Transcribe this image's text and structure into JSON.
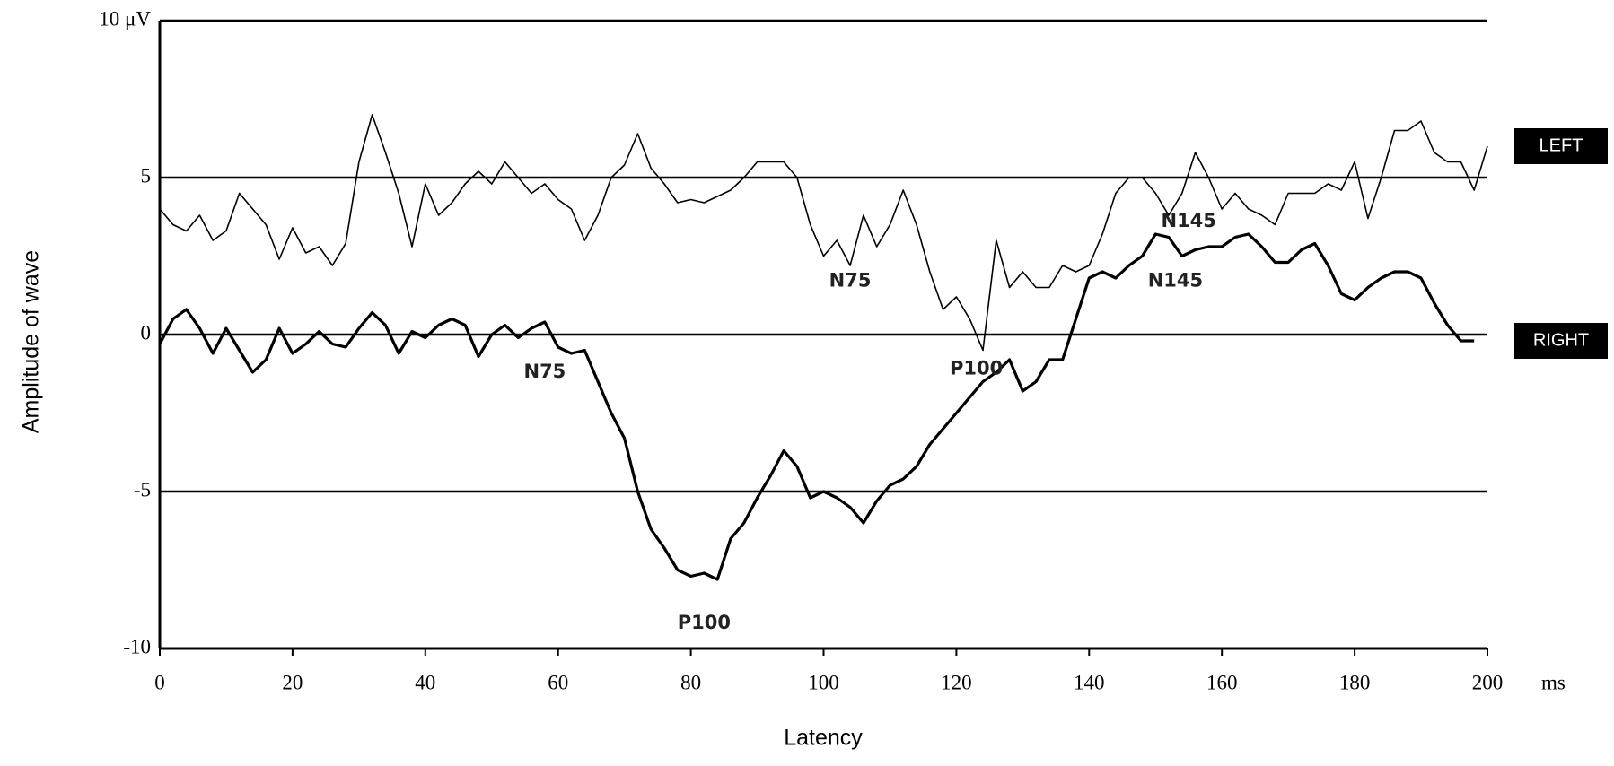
{
  "chart_data": {
    "type": "line",
    "xlabel": "Latency",
    "ylabel": "Amplitude of wave",
    "x_unit": "ms",
    "x": [
      0,
      2,
      4,
      6,
      8,
      10,
      12,
      14,
      16,
      18,
      20,
      22,
      24,
      26,
      28,
      30,
      32,
      34,
      36,
      38,
      40,
      42,
      44,
      46,
      48,
      50,
      52,
      54,
      56,
      58,
      60,
      62,
      64,
      66,
      68,
      70,
      72,
      74,
      76,
      78,
      80,
      82,
      84,
      86,
      88,
      90,
      92,
      94,
      96,
      98,
      100,
      102,
      104,
      106,
      108,
      110,
      112,
      114,
      116,
      118,
      120,
      122,
      124,
      126,
      128,
      130,
      132,
      134,
      136,
      138,
      140,
      142,
      144,
      146,
      148,
      150,
      152,
      154,
      156,
      158,
      160,
      162,
      164,
      166,
      168,
      170,
      172,
      174,
      176,
      178,
      180,
      182,
      184,
      186,
      188,
      190,
      192,
      194,
      196,
      198,
      200
    ],
    "series": [
      {
        "name": "LEFT",
        "color": "#000000",
        "width": 1.6,
        "values": [
          4,
          3.5,
          3.3,
          3.8,
          3,
          3.3,
          4.5,
          4,
          3.5,
          2.4,
          3.4,
          2.6,
          2.8,
          2.2,
          2.9,
          5.5,
          7,
          5.8,
          4.5,
          2.8,
          4.8,
          3.8,
          4.2,
          4.8,
          5.2,
          4.8,
          5.5,
          5,
          4.5,
          4.8,
          4.3,
          4,
          3,
          3.8,
          5,
          5.4,
          6.4,
          5.3,
          4.8,
          4.2,
          4.3,
          4.2,
          4.4,
          4.6,
          5,
          5.5,
          5.5,
          5.5,
          5,
          3.5,
          2.5,
          3,
          2.2,
          3.8,
          2.8,
          3.5,
          4.6,
          3.5,
          2,
          0.8,
          1.2,
          0.5,
          -0.5,
          3,
          1.5,
          2,
          1.5,
          1.5,
          2.2,
          2,
          2.2,
          3.2,
          4.5,
          5,
          5,
          4.5,
          3.8,
          4.5,
          5.8,
          5,
          4,
          4.5,
          4,
          3.8,
          3.5,
          4.5,
          4.5,
          4.5,
          4.8,
          4.6,
          5.5,
          3.7,
          5,
          6.5,
          6.5,
          6.8,
          5.8,
          5.5,
          5.5,
          4.6,
          6
        ]
      },
      {
        "name": "RIGHT",
        "color": "#000000",
        "width": 3.2,
        "values": [
          -0.3,
          0.5,
          0.8,
          0.2,
          -0.6,
          0.2,
          -0.5,
          -1.2,
          -0.8,
          0.2,
          -0.6,
          -0.3,
          0.1,
          -0.3,
          -0.4,
          0.2,
          0.7,
          0.3,
          -0.6,
          0.1,
          -0.1,
          0.3,
          0.5,
          0.3,
          -0.7,
          0,
          0.3,
          -0.1,
          0.2,
          0.4,
          -0.4,
          -0.6,
          -0.5,
          -1.5,
          -2.5,
          -3.3,
          -5,
          -6.2,
          -6.8,
          -7.5,
          -7.7,
          -7.6,
          -7.8,
          -6.5,
          -6,
          -5.2,
          -4.5,
          -3.7,
          -4.2,
          -5.2,
          -5,
          -5.2,
          -5.5,
          -6,
          -5.3,
          -4.8,
          -4.6,
          -4.2,
          -3.5,
          -3,
          -2.5,
          -2,
          -1.5,
          -1.2,
          -0.8,
          -1.8,
          -1.5,
          -0.8,
          -0.8,
          0.5,
          1.8,
          2,
          1.8,
          2.2,
          2.5,
          3.2,
          3.1,
          2.5,
          2.7,
          2.8,
          2.8,
          3.1,
          3.2,
          2.8,
          2.3,
          2.3,
          2.7,
          2.9,
          2.2,
          1.3,
          1.1,
          1.5,
          1.8,
          2,
          2,
          1.8,
          1,
          0.3,
          -0.2,
          -0.2,
          null
        ]
      }
    ],
    "annotations": [
      {
        "text": "N75",
        "x": 58,
        "y": -1.2
      },
      {
        "text": "P100",
        "x": 82,
        "y": -9.2
      },
      {
        "text": "N145",
        "x": 153,
        "y": 1.7
      },
      {
        "text": "N75",
        "x": 104,
        "y": 1.7
      },
      {
        "text": "P100",
        "x": 123,
        "y": -1.1
      },
      {
        "text": "N145",
        "x": 155,
        "y": 3.6
      }
    ],
    "xlim": [
      0,
      200
    ],
    "xticks": [
      0,
      20,
      40,
      60,
      80,
      100,
      120,
      140,
      160,
      180,
      200
    ],
    "ylim": [
      -10,
      10
    ],
    "yticks": [
      -10,
      -5,
      0,
      5,
      {
        "value": 10,
        "label": "10 μV"
      }
    ],
    "grid": true
  }
}
